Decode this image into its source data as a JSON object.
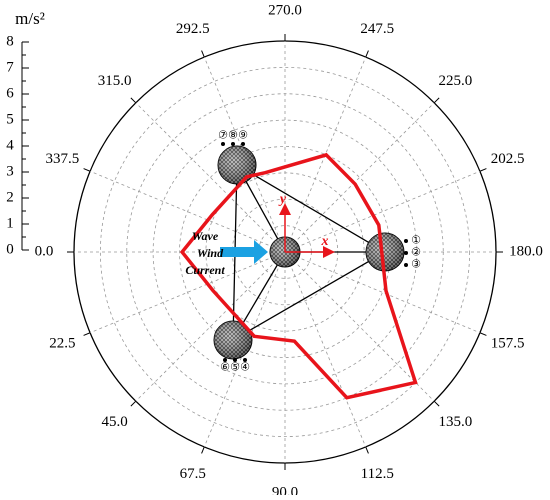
{
  "chart_data": {
    "type": "polar",
    "radial_axis_label": "m/s²",
    "rlim": [
      0,
      8
    ],
    "rticks": [
      0,
      1,
      2,
      3,
      4,
      5,
      6,
      7,
      8
    ],
    "thetaticks": [
      {
        "value": 0,
        "label": "0.0"
      },
      22.5,
      {
        "value": 45,
        "label": "45.0"
      },
      67.5,
      {
        "value": 90,
        "label": "90.0"
      },
      112.5,
      {
        "value": 135,
        "label": "135.0"
      },
      157.5,
      {
        "value": 180,
        "label": "180.0"
      },
      202.5,
      {
        "value": 225,
        "label": "225.0"
      },
      247.5,
      {
        "value": 270,
        "label": "270.0"
      },
      292.5,
      {
        "value": 315,
        "label": "315.0"
      },
      337.5
    ],
    "grid": true,
    "series": [
      {
        "color": "#e8141b",
        "theta": [
          0,
          28,
          70,
          96,
          113,
          135,
          159,
          196,
          224,
          247,
          284,
          297,
          333
        ],
        "values": [
          3.9,
          3.1,
          3.4,
          3.4,
          6.0,
          7.0,
          4.1,
          3.7,
          3.7,
          4.0,
          3.1,
          3.2,
          3.1
        ]
      }
    ],
    "annotations": [
      "Wave",
      "Wind",
      "Current",
      "x",
      "y",
      "①",
      "②",
      "③",
      "④",
      "⑤",
      "⑥",
      "⑦",
      "⑧",
      "⑨"
    ]
  }
}
